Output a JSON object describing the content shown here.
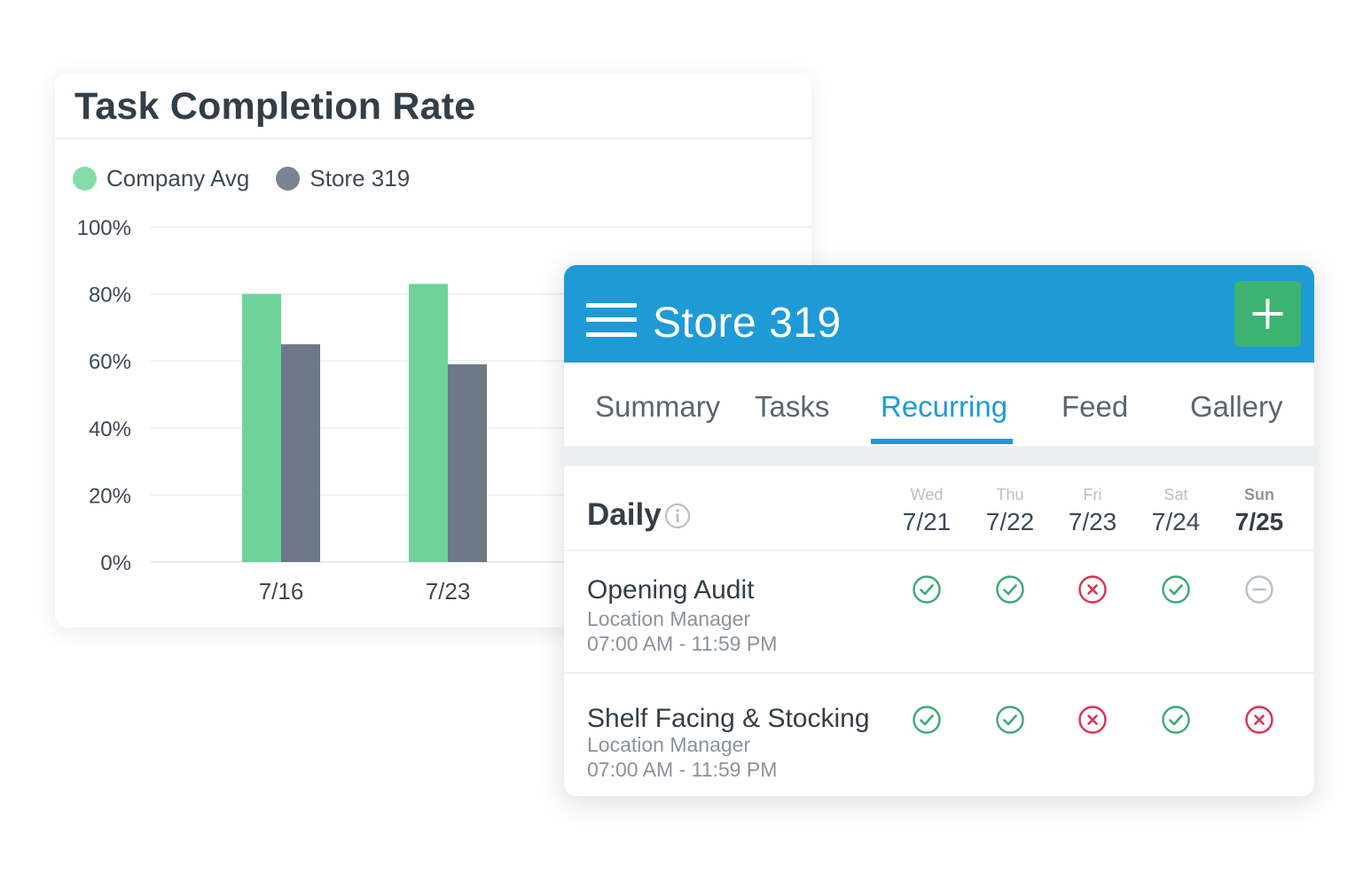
{
  "chart_card": {
    "title": "Task Completion Rate"
  },
  "chart_data": {
    "type": "bar",
    "title": "Task Completion Rate",
    "categories": [
      "7/16",
      "7/23"
    ],
    "series": [
      {
        "name": "Company Avg",
        "color": "#6dd398",
        "values": [
          80,
          83
        ]
      },
      {
        "name": "Store 319",
        "color": "#6e7887",
        "values": [
          65,
          59
        ]
      }
    ],
    "y_ticks": [
      "0%",
      "20%",
      "40%",
      "60%",
      "80%",
      "100%"
    ],
    "ylim": [
      0,
      100
    ],
    "grid": true,
    "legend_position": "top-left"
  },
  "store": {
    "title": "Store 319",
    "add_icon": "plus-icon",
    "menu_icon": "hamburger-menu-icon",
    "header_color": "#1e9bd7",
    "tabs": [
      {
        "label": "Summary",
        "active": false
      },
      {
        "label": "Tasks",
        "active": false
      },
      {
        "label": "Recurring",
        "active": true
      },
      {
        "label": "Feed",
        "active": false
      },
      {
        "label": "Gallery",
        "active": false
      }
    ],
    "section_title": "Daily",
    "days": [
      {
        "name": "Wed",
        "date": "7/21",
        "today": false
      },
      {
        "name": "Thu",
        "date": "7/22",
        "today": false
      },
      {
        "name": "Fri",
        "date": "7/23",
        "today": false
      },
      {
        "name": "Sat",
        "date": "7/24",
        "today": false
      },
      {
        "name": "Sun",
        "date": "7/25",
        "today": true
      }
    ],
    "tasks": [
      {
        "name": "Opening Audit",
        "role": "Location Manager",
        "time": "07:00 AM - 11:59 PM",
        "statuses": [
          "complete",
          "complete",
          "missed",
          "complete",
          "pending"
        ]
      },
      {
        "name": "Shelf Facing & Stocking",
        "role": "Location Manager",
        "time": "07:00 AM - 11:59 PM",
        "statuses": [
          "complete",
          "complete",
          "missed",
          "complete",
          "missed"
        ]
      }
    ],
    "status_colors": {
      "complete": "#3aa97a",
      "missed": "#d9334f",
      "pending": "#b9c0c7"
    }
  }
}
